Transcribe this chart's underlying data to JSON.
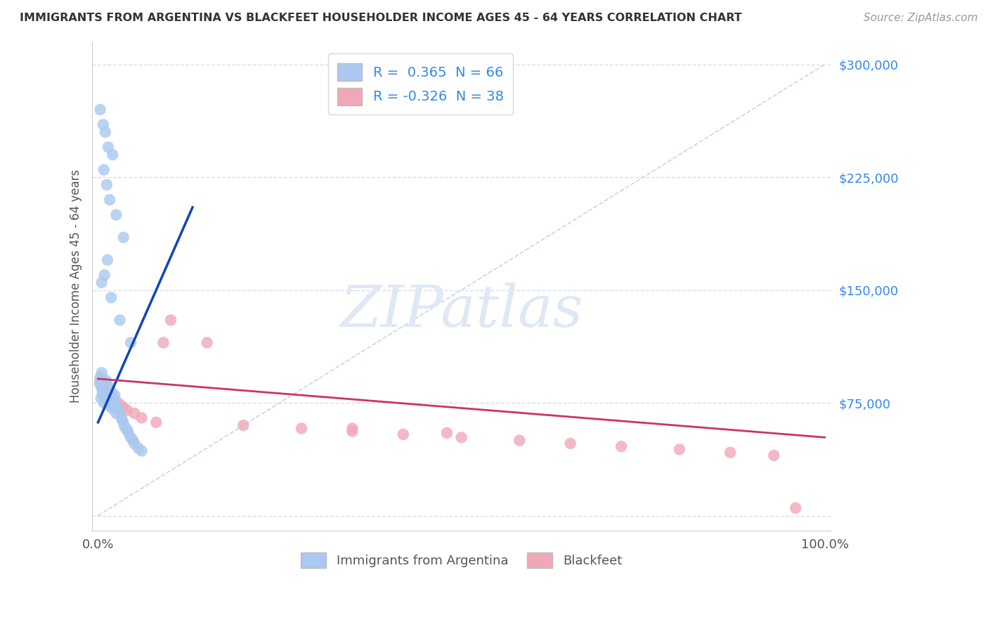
{
  "title": "IMMIGRANTS FROM ARGENTINA VS BLACKFEET HOUSEHOLDER INCOME AGES 45 - 64 YEARS CORRELATION CHART",
  "source": "Source: ZipAtlas.com",
  "ylabel": "Householder Income Ages 45 - 64 years",
  "blue_R": 0.365,
  "blue_N": 66,
  "pink_R": -0.326,
  "pink_N": 38,
  "blue_color": "#aac8f0",
  "blue_line_color": "#1144bb",
  "pink_color": "#f0a8b8",
  "pink_line_color": "#cc3366",
  "watermark_color": "#e0e8f5",
  "background_color": "#ffffff",
  "grid_color": "#d8dde8",
  "blue_scatter_x": [
    0.002,
    0.003,
    0.004,
    0.005,
    0.005,
    0.006,
    0.006,
    0.007,
    0.007,
    0.008,
    0.008,
    0.009,
    0.009,
    0.01,
    0.01,
    0.011,
    0.011,
    0.012,
    0.012,
    0.013,
    0.013,
    0.014,
    0.014,
    0.015,
    0.015,
    0.016,
    0.017,
    0.018,
    0.019,
    0.02,
    0.02,
    0.021,
    0.022,
    0.023,
    0.024,
    0.025,
    0.026,
    0.028,
    0.03,
    0.032,
    0.034,
    0.036,
    0.038,
    0.04,
    0.042,
    0.045,
    0.048,
    0.05,
    0.055,
    0.06,
    0.003,
    0.007,
    0.01,
    0.014,
    0.02,
    0.008,
    0.012,
    0.016,
    0.025,
    0.035,
    0.005,
    0.009,
    0.013,
    0.018,
    0.03,
    0.045
  ],
  "blue_scatter_y": [
    88000,
    92000,
    78000,
    85000,
    95000,
    82000,
    90000,
    87000,
    80000,
    83000,
    75000,
    78000,
    88000,
    85000,
    76000,
    82000,
    90000,
    79000,
    84000,
    77000,
    81000,
    75000,
    86000,
    80000,
    73000,
    77000,
    74000,
    79000,
    82000,
    76000,
    71000,
    78000,
    73000,
    80000,
    74000,
    68000,
    72000,
    70000,
    68000,
    65000,
    63000,
    60000,
    58000,
    57000,
    55000,
    52000,
    50000,
    48000,
    45000,
    43000,
    270000,
    260000,
    255000,
    245000,
    240000,
    230000,
    220000,
    210000,
    200000,
    185000,
    155000,
    160000,
    170000,
    145000,
    130000,
    115000
  ],
  "pink_scatter_x": [
    0.003,
    0.005,
    0.006,
    0.007,
    0.008,
    0.009,
    0.01,
    0.011,
    0.012,
    0.013,
    0.015,
    0.017,
    0.02,
    0.025,
    0.03,
    0.035,
    0.04,
    0.05,
    0.06,
    0.08,
    0.1,
    0.15,
    0.2,
    0.28,
    0.35,
    0.42,
    0.5,
    0.58,
    0.65,
    0.72,
    0.8,
    0.87,
    0.93,
    0.96,
    0.025,
    0.09,
    0.35,
    0.48
  ],
  "pink_scatter_y": [
    90000,
    88000,
    86000,
    85000,
    83000,
    84000,
    82000,
    80000,
    85000,
    79000,
    77000,
    80000,
    78000,
    76000,
    74000,
    72000,
    70000,
    68000,
    65000,
    62000,
    130000,
    115000,
    60000,
    58000,
    56000,
    54000,
    52000,
    50000,
    48000,
    46000,
    44000,
    42000,
    40000,
    5000,
    72000,
    115000,
    58000,
    55000
  ],
  "blue_line_x0": 0.0,
  "blue_line_y0": 62000,
  "blue_line_x1": 0.13,
  "blue_line_y1": 205000,
  "pink_line_x0": 0.0,
  "pink_line_y0": 91000,
  "pink_line_x1": 1.0,
  "pink_line_y1": 52000,
  "ref_line_x0": 0.0,
  "ref_line_y0": 0,
  "ref_line_x1": 1.0,
  "ref_line_y1": 300000,
  "yticks": [
    0,
    75000,
    150000,
    225000,
    300000
  ],
  "yticklabels": [
    "",
    "$75,000",
    "$150,000",
    "$225,000",
    "$300,000"
  ],
  "ylim_min": -10000,
  "ylim_max": 315000,
  "xlim_min": -0.008,
  "xlim_max": 1.008
}
